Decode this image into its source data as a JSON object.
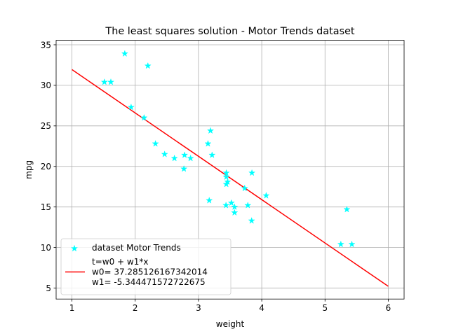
{
  "chart_data": {
    "type": "scatter",
    "title": "The least squares solution - Motor Trends dataset",
    "xlabel": "weight",
    "ylabel": "mpg",
    "xlim": [
      0.75,
      6.25
    ],
    "ylim": [
      3.65,
      35.55
    ],
    "x_ticks": [
      1,
      2,
      3,
      4,
      5,
      6
    ],
    "y_ticks": [
      5,
      10,
      15,
      20,
      25,
      30,
      35
    ],
    "grid": true,
    "legend_position": "lower-left",
    "series": [
      {
        "name": "dataset Motor Trends",
        "kind": "scatter",
        "marker": "star",
        "color": "#00ffff",
        "points": [
          [
            2.62,
            21.0
          ],
          [
            2.875,
            21.0
          ],
          [
            2.32,
            22.8
          ],
          [
            3.215,
            21.4
          ],
          [
            3.44,
            18.7
          ],
          [
            3.46,
            18.1
          ],
          [
            3.57,
            14.3
          ],
          [
            3.19,
            24.4
          ],
          [
            3.15,
            22.8
          ],
          [
            3.44,
            19.2
          ],
          [
            3.44,
            17.8
          ],
          [
            4.07,
            16.4
          ],
          [
            3.73,
            17.3
          ],
          [
            3.78,
            15.2
          ],
          [
            5.25,
            10.4
          ],
          [
            5.424,
            10.4
          ],
          [
            5.345,
            14.7
          ],
          [
            2.2,
            32.4
          ],
          [
            1.615,
            30.4
          ],
          [
            1.835,
            33.9
          ],
          [
            2.465,
            21.5
          ],
          [
            3.52,
            15.5
          ],
          [
            3.435,
            15.2
          ],
          [
            3.84,
            13.3
          ],
          [
            3.845,
            19.2
          ],
          [
            1.935,
            27.3
          ],
          [
            2.14,
            26.0
          ],
          [
            1.513,
            30.4
          ],
          [
            3.17,
            15.8
          ],
          [
            2.77,
            19.7
          ],
          [
            3.57,
            15.0
          ],
          [
            2.78,
            21.4
          ]
        ]
      },
      {
        "name": "t=w0 + w1*x\nw0= 37.285126167342014\nw1= -5.344471572722675",
        "kind": "line",
        "color": "#ff0000",
        "points": [
          [
            1,
            31.94065459461934
          ],
          [
            6,
            5.218296731005639
          ]
        ]
      }
    ]
  }
}
